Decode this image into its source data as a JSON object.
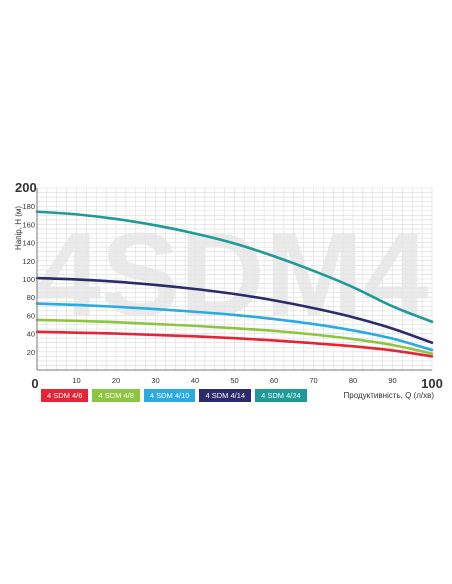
{
  "chart_data": {
    "type": "line",
    "watermark": "4SDM4",
    "xlabel": "Продуктивність, Q (л/хв)",
    "ylabel": "Напір, H (м)",
    "xlim": [
      0,
      100
    ],
    "ylim": [
      0,
      200
    ],
    "x_ticks": [
      0,
      10,
      20,
      30,
      40,
      50,
      60,
      70,
      80,
      90,
      100
    ],
    "y_ticks": [
      20,
      40,
      60,
      80,
      100,
      120,
      140,
      160,
      180,
      200
    ],
    "x_tick_labels": [
      "0",
      "10",
      "20",
      "30",
      "40",
      "50",
      "60",
      "70",
      "80",
      "90",
      "100"
    ],
    "y_tick_labels": [
      "20",
      "40",
      "60",
      "80",
      "100",
      "120",
      "140",
      "160",
      "180",
      "200"
    ],
    "grid": true,
    "legend_position": "bottom-left",
    "series": [
      {
        "name": "4 SDM 4/6",
        "color": "#e52535",
        "x": [
          0,
          10,
          20,
          30,
          40,
          50,
          60,
          70,
          80,
          90,
          100
        ],
        "y": [
          42,
          41,
          40,
          38.5,
          37,
          35,
          32.5,
          29.5,
          26,
          21.5,
          15
        ]
      },
      {
        "name": "4 SDM 4/8",
        "color": "#8cc63f",
        "x": [
          0,
          10,
          20,
          30,
          40,
          50,
          60,
          70,
          80,
          90,
          100
        ],
        "y": [
          55,
          54,
          52.5,
          50.5,
          48.5,
          46,
          43,
          39,
          34,
          27.5,
          18
        ]
      },
      {
        "name": "4 SDM 4/10",
        "color": "#29abe2",
        "x": [
          0,
          10,
          20,
          30,
          40,
          50,
          60,
          70,
          80,
          90,
          100
        ],
        "y": [
          73,
          71.5,
          69.5,
          67,
          64,
          60.5,
          56,
          50.5,
          43.5,
          34.5,
          22
        ]
      },
      {
        "name": "4 SDM 4/14",
        "color": "#2b2a6b",
        "x": [
          0,
          10,
          20,
          30,
          40,
          50,
          60,
          70,
          80,
          90,
          100
        ],
        "y": [
          101,
          99.5,
          97,
          93.5,
          89,
          83.5,
          76.5,
          68,
          58,
          45.5,
          30
        ]
      },
      {
        "name": "4 SDM 4/24",
        "color": "#1f9a9a",
        "x": [
          0,
          10,
          20,
          30,
          40,
          50,
          60,
          70,
          80,
          90,
          100
        ],
        "y": [
          174,
          171,
          166,
          159,
          150,
          139,
          125,
          109,
          91,
          70,
          53
        ]
      }
    ]
  }
}
